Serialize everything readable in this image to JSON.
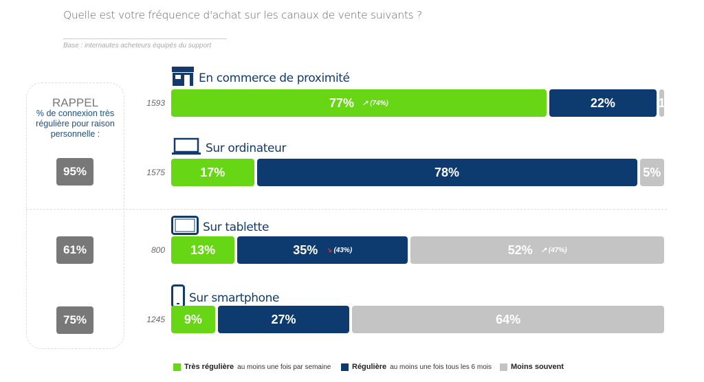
{
  "chart_data": {
    "type": "bar",
    "title": "Quelle est votre fréquence d'achat sur les canaux de vente suivants ?",
    "subtitle": "Base : internautes acheteurs équipés du support",
    "stacked": true,
    "horizontal": true,
    "categories": [
      "En commerce de proximité",
      "Sur ordinateur",
      "Sur tablette",
      "Sur smartphone"
    ],
    "base_counts": [
      "1593",
      "1575",
      "800",
      "1245"
    ],
    "series": [
      {
        "name": "Très régulière",
        "desc": "au moins une fois par semaine",
        "color": "#66d615",
        "values": [
          77,
          17,
          13,
          9
        ],
        "trends": [
          "↗ (74%)",
          "",
          "",
          ""
        ]
      },
      {
        "name": "Régulière",
        "desc": "au moins une fois tous les 6 mois",
        "color": "#0d3b70",
        "values": [
          22,
          78,
          35,
          27
        ],
        "trends": [
          "",
          "",
          "↘ (43%)",
          ""
        ]
      },
      {
        "name": "Moins souvent",
        "desc": "",
        "color": "#c4c4c4",
        "values": [
          1,
          5,
          52,
          64
        ],
        "trends": [
          "",
          "",
          "↗ (47%)",
          ""
        ]
      }
    ],
    "labels": [
      [
        "77%",
        "22%",
        "1"
      ],
      [
        "17%",
        "78%",
        "5%"
      ],
      [
        "13%",
        "35%",
        "52%"
      ],
      [
        "9%",
        "27%",
        "64%"
      ]
    ],
    "icons": [
      "store-icon",
      "laptop-icon",
      "tablet-icon",
      "smartphone-icon"
    ],
    "rappel": {
      "title": "RAPPEL",
      "subtitle": "% de connexion très régulière pour raison personnelle :",
      "values": [
        "95%",
        "61%",
        "75%"
      ]
    }
  }
}
